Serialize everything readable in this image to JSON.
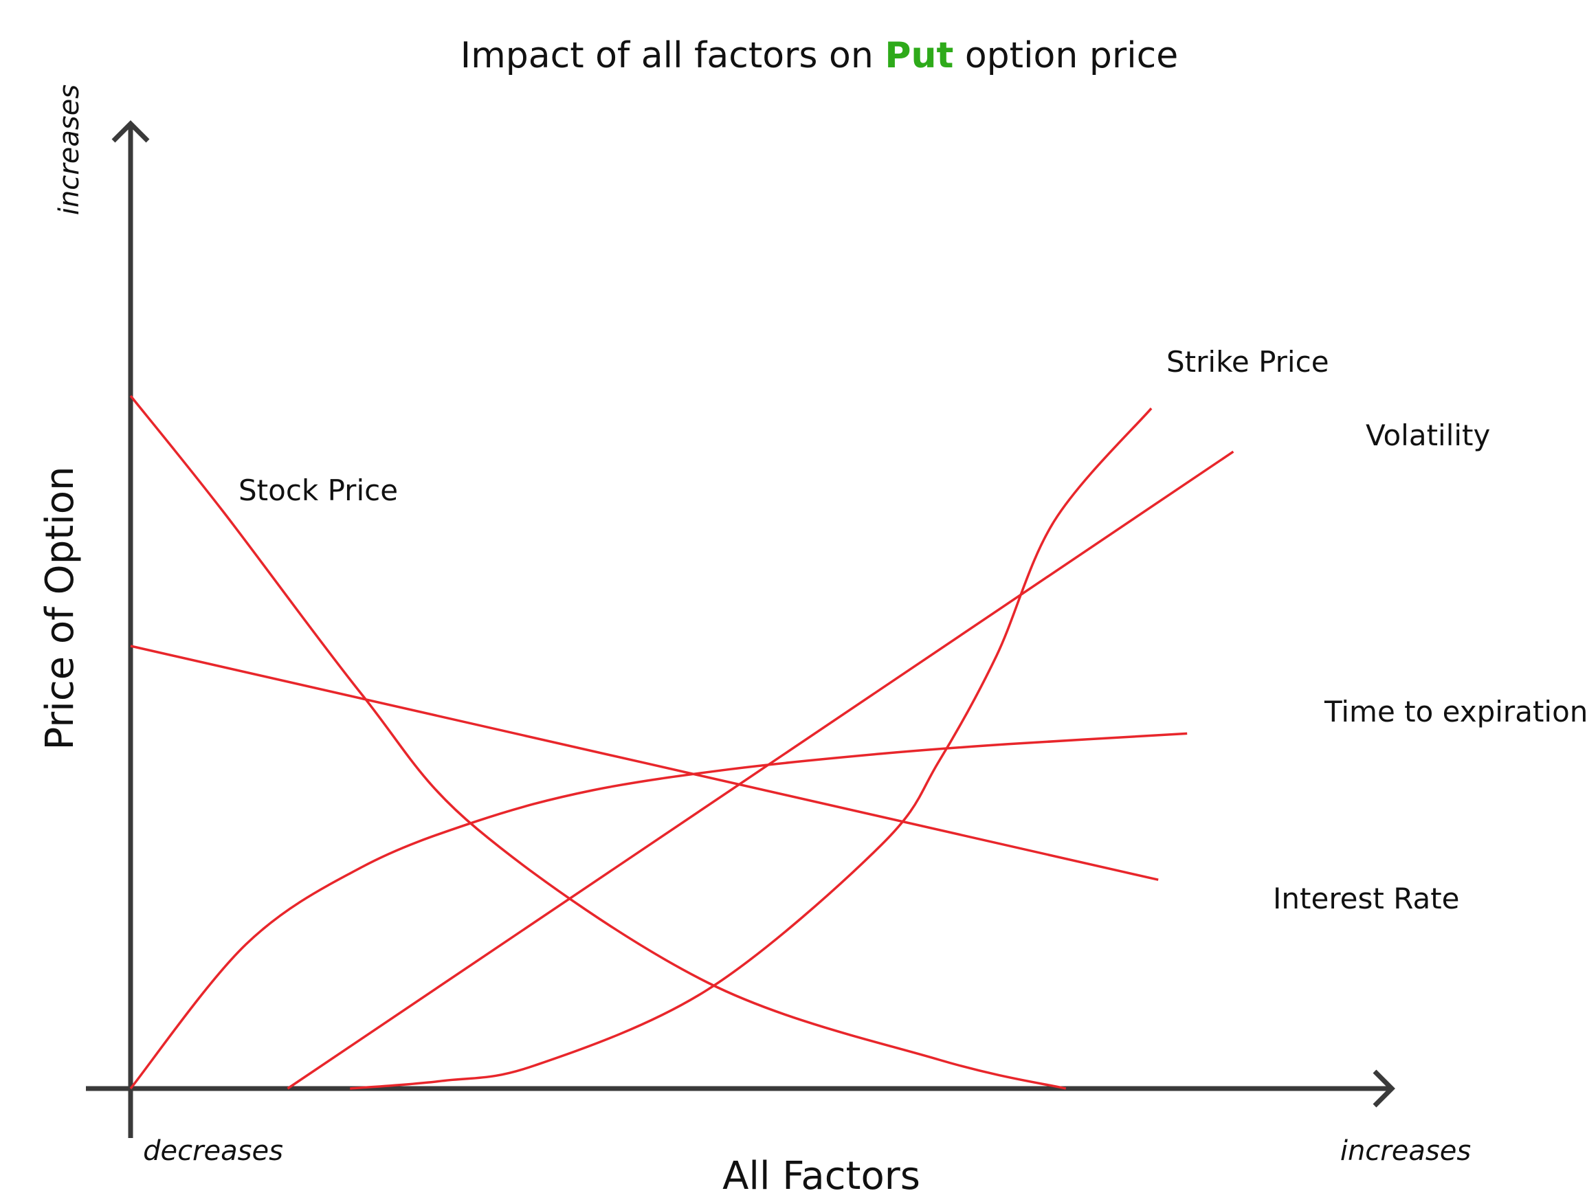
{
  "chart_data": {
    "type": "line",
    "title": {
      "prefix": "Impact of all factors on ",
      "highlight": "Put",
      "suffix": " option price",
      "highlight_color": "#2eaa1a"
    },
    "xlabel": "All Factors",
    "ylabel": "Price of Option",
    "x_start_label": "decreases",
    "x_end_label": "increases",
    "y_end_label": "increases",
    "xlim": [
      0,
      100
    ],
    "ylim": [
      0,
      100
    ],
    "grid": false,
    "axis_color": "#3a3a3a",
    "line_color": "#e8262b",
    "series": [
      {
        "name": "Stock Price",
        "points": [
          [
            0,
            72
          ],
          [
            8,
            60
          ],
          [
            20,
            41
          ],
          [
            30,
            27
          ],
          [
            50,
            11
          ],
          [
            70,
            3
          ],
          [
            81,
            0
          ]
        ]
      },
      {
        "name": "Interest Rate",
        "points": [
          [
            0,
            46
          ],
          [
            89,
            21.7
          ]
        ]
      },
      {
        "name": "Time to expiration",
        "points": [
          [
            0,
            0
          ],
          [
            10,
            15
          ],
          [
            20,
            23
          ],
          [
            30,
            27.8
          ],
          [
            40,
            31
          ],
          [
            52,
            33.2
          ],
          [
            65,
            34.8
          ],
          [
            76,
            35.8
          ],
          [
            91.5,
            36.9
          ]
        ]
      },
      {
        "name": "Volatility",
        "points": [
          [
            13.6,
            0
          ],
          [
            95.5,
            66.2
          ]
        ]
      },
      {
        "name": "Strike Price",
        "points": [
          [
            19,
            0
          ],
          [
            27,
            0.8
          ],
          [
            35,
            2.4
          ],
          [
            50,
            10.3
          ],
          [
            65,
            25.3
          ],
          [
            70,
            34
          ],
          [
            75,
            45
          ],
          [
            80,
            59
          ],
          [
            88.4,
            70.7
          ]
        ]
      }
    ]
  }
}
